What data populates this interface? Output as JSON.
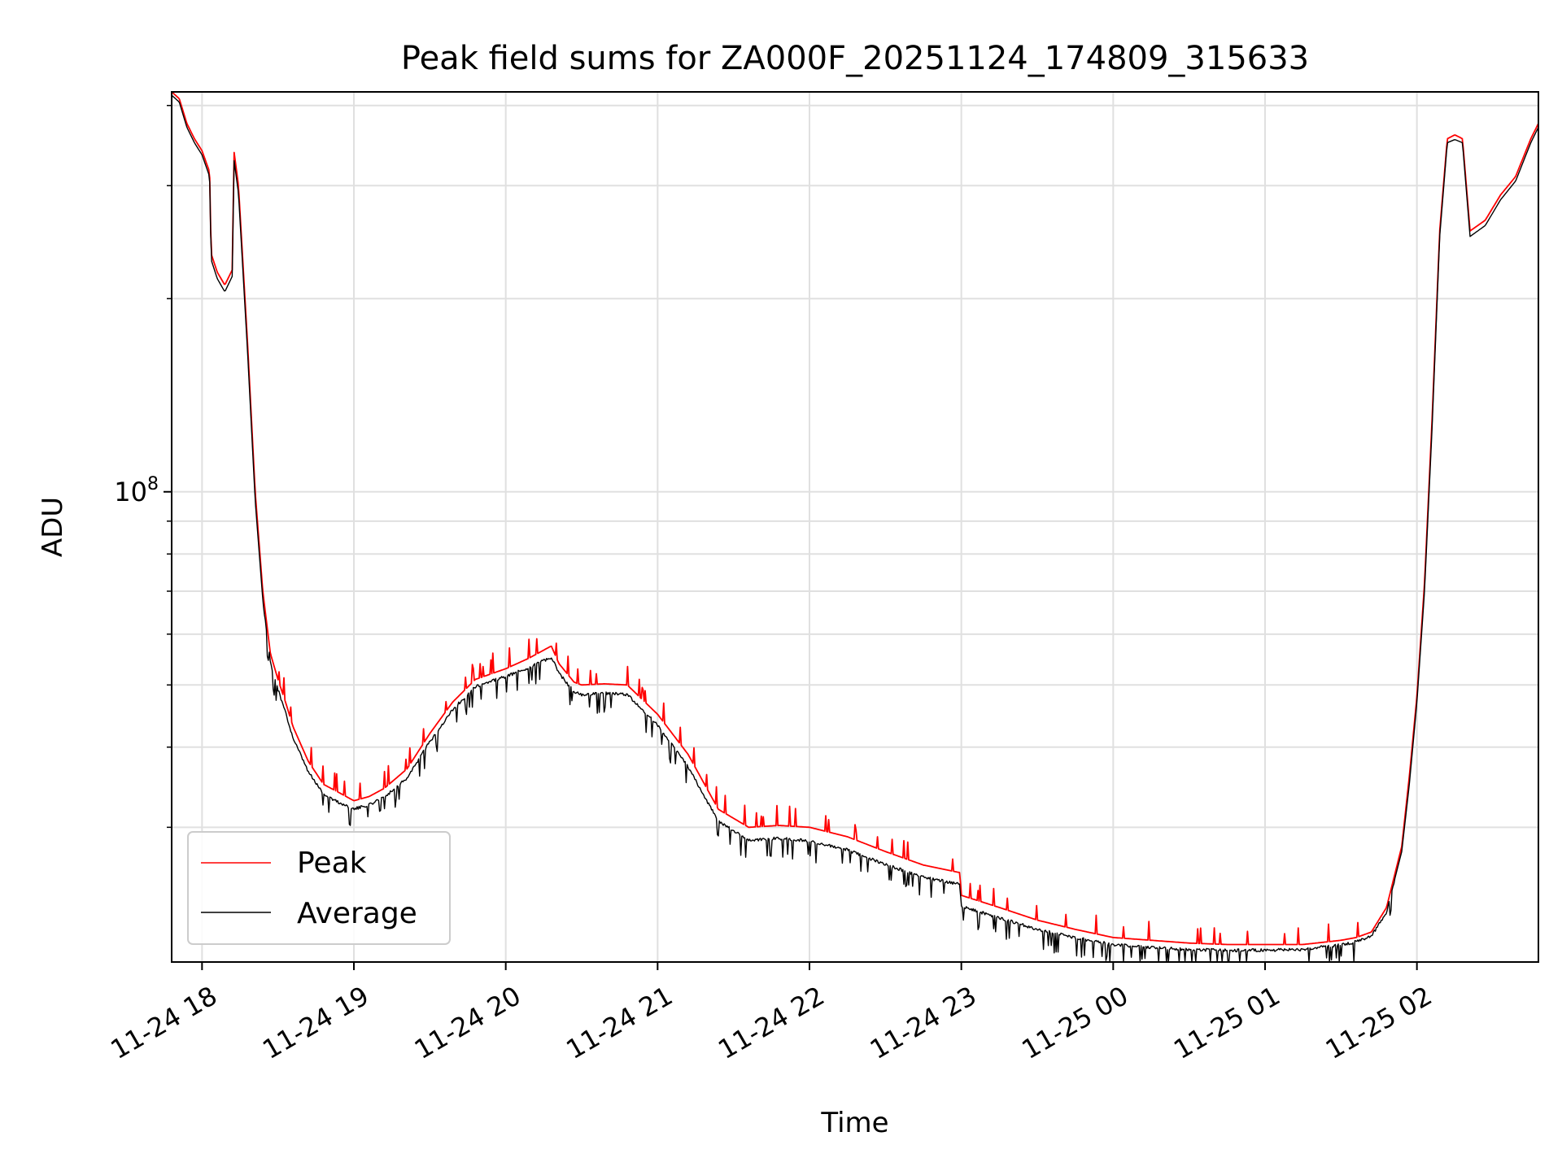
{
  "chart_data": {
    "type": "line",
    "title": "Peak field sums for ZA000F_20251124_174809_315633",
    "xlabel": "Time",
    "ylabel": "ADU",
    "yscale": "log",
    "ylim": [
      18500000,
      420000000
    ],
    "xlim": [
      17.8,
      26.8
    ],
    "x_tick_values": [
      18,
      19,
      20,
      21,
      22,
      23,
      24,
      25,
      26
    ],
    "x_tick_labels": [
      "11-24 18",
      "11-24 19",
      "11-24 20",
      "11-24 21",
      "11-24 22",
      "11-24 23",
      "11-25 00",
      "11-25 01",
      "11-25 02"
    ],
    "y_tick_major": {
      "value": 100000000,
      "base": "10",
      "exp": "8"
    },
    "y_tick_minor": [
      30000000,
      40000000,
      50000000,
      60000000,
      70000000,
      80000000,
      90000000,
      200000000,
      300000000,
      400000000
    ],
    "grid": true,
    "legend_location": "lower-left",
    "series": [
      {
        "name": "Peak",
        "color": "#ff0000",
        "x": [
          17.8,
          17.85,
          17.9,
          17.95,
          18.0,
          18.05,
          18.06,
          18.1,
          18.15,
          18.2,
          18.21,
          18.24,
          18.3,
          18.35,
          18.4,
          18.45,
          18.5,
          18.55,
          18.6,
          18.7,
          18.8,
          18.9,
          19.0,
          19.1,
          19.2,
          19.35,
          19.5,
          19.65,
          19.8,
          20.0,
          20.15,
          20.3,
          20.35,
          20.45,
          20.5,
          20.65,
          20.8,
          21.0,
          21.2,
          21.4,
          21.6,
          21.8,
          22.0,
          22.25,
          22.5,
          22.75,
          22.99,
          23.0,
          23.25,
          23.5,
          23.75,
          24.0,
          24.25,
          24.5,
          24.75,
          25.0,
          25.25,
          25.5,
          25.6,
          25.7,
          25.8,
          25.9,
          25.95,
          26.0,
          26.05,
          26.1,
          26.15,
          26.2,
          26.25,
          26.3,
          26.35,
          26.45,
          26.55,
          26.65,
          26.75,
          26.8
        ],
        "values": [
          420000000,
          410000000,
          375000000,
          355000000,
          340000000,
          315000000,
          235000000,
          220000000,
          210000000,
          222000000,
          340000000,
          300000000,
          170000000,
          100000000,
          70000000,
          56000000,
          51000000,
          47000000,
          43000000,
          38000000,
          35000000,
          34000000,
          33000000,
          33500000,
          34500000,
          37000000,
          42000000,
          47000000,
          51000000,
          53000000,
          55000000,
          57500000,
          54000000,
          50500000,
          50000000,
          50200000,
          50000000,
          45000000,
          39000000,
          32000000,
          30000000,
          30200000,
          30000000,
          29000000,
          27500000,
          26200000,
          25500000,
          23500000,
          22500000,
          21500000,
          20800000,
          20200000,
          20000000,
          19800000,
          19700000,
          19700000,
          19700000,
          20000000,
          20200000,
          20600000,
          22500000,
          28000000,
          36000000,
          48000000,
          72000000,
          130000000,
          255000000,
          355000000,
          360000000,
          355000000,
          255000000,
          265000000,
          290000000,
          310000000,
          355000000,
          375000000
        ]
      },
      {
        "name": "Average",
        "color": "#000000",
        "x": [
          17.8,
          17.85,
          17.9,
          17.95,
          18.0,
          18.05,
          18.06,
          18.1,
          18.15,
          18.2,
          18.21,
          18.24,
          18.3,
          18.35,
          18.4,
          18.45,
          18.5,
          18.55,
          18.6,
          18.7,
          18.8,
          18.9,
          19.0,
          19.1,
          19.2,
          19.35,
          19.5,
          19.65,
          19.8,
          20.0,
          20.15,
          20.3,
          20.35,
          20.45,
          20.5,
          20.65,
          20.8,
          21.0,
          21.2,
          21.4,
          21.6,
          21.8,
          22.0,
          22.25,
          22.5,
          22.75,
          22.99,
          23.0,
          23.25,
          23.5,
          23.75,
          24.0,
          24.25,
          24.5,
          24.75,
          25.0,
          25.25,
          25.5,
          25.6,
          25.7,
          25.8,
          25.9,
          25.95,
          26.0,
          26.05,
          26.1,
          26.15,
          26.2,
          26.25,
          26.3,
          26.35,
          26.45,
          26.55,
          26.65,
          26.75,
          26.8
        ],
        "values": [
          415000000,
          405000000,
          370000000,
          350000000,
          335000000,
          310000000,
          230000000,
          215000000,
          205000000,
          217000000,
          330000000,
          292000000,
          165000000,
          97000000,
          68000000,
          54500000,
          49500000,
          45500000,
          41500000,
          36800000,
          34000000,
          33000000,
          32200000,
          32700000,
          33600000,
          36000000,
          41000000,
          46000000,
          50000000,
          51800000,
          53500000,
          55500000,
          52500000,
          49000000,
          48500000,
          48800000,
          48600000,
          43500000,
          37500000,
          30800000,
          28800000,
          29000000,
          28700000,
          27800000,
          26400000,
          25200000,
          24600000,
          22700000,
          21800000,
          20900000,
          20300000,
          19800000,
          19600000,
          19450000,
          19400000,
          19400000,
          19450000,
          19800000,
          20000000,
          20400000,
          22200000,
          27500000,
          35000000,
          47000000,
          70000000,
          126000000,
          250000000,
          350000000,
          354000000,
          350000000,
          250000000,
          260000000,
          285000000,
          305000000,
          350000000,
          370000000
        ]
      }
    ]
  }
}
